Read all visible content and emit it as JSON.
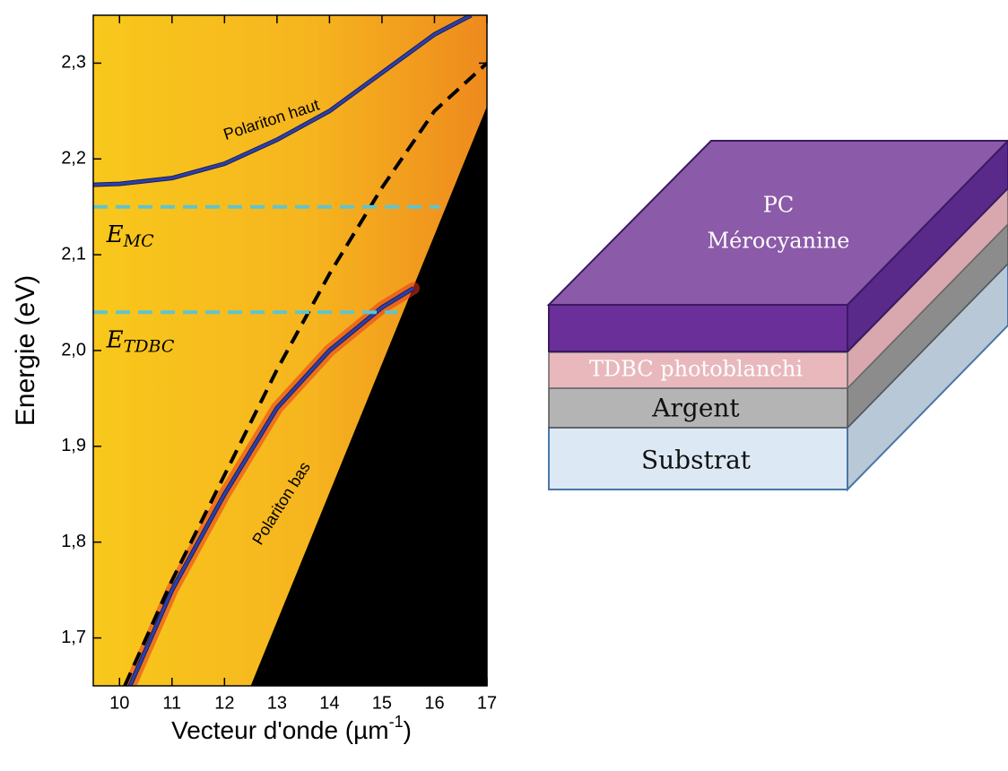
{
  "chart_data": {
    "type": "line",
    "ylabel": "Energie (eV)",
    "xlabel": {
      "text": "Vecteur d'onde (µm",
      "sup": "-1",
      "tail": ")"
    },
    "xlim": [
      9.5,
      17
    ],
    "ylim": [
      1.65,
      2.35
    ],
    "xticks": [
      10,
      11,
      12,
      13,
      14,
      15,
      16,
      17
    ],
    "yticks": [
      {
        "value": 1.7,
        "label": "1,7"
      },
      {
        "value": 1.8,
        "label": "1,8"
      },
      {
        "value": 1.9,
        "label": "1,9"
      },
      {
        "value": 2.0,
        "label": "2,0"
      },
      {
        "value": 2.1,
        "label": "2,1"
      },
      {
        "value": 2.2,
        "label": "2,2"
      },
      {
        "value": 2.3,
        "label": "2,3"
      }
    ],
    "region": {
      "x": [
        12.5,
        17,
        17
      ],
      "values": [
        1.65,
        2.255,
        1.65
      ],
      "color": "#000000"
    },
    "series": [
      {
        "x": [
          9.5,
          10,
          11,
          12,
          13,
          14,
          15,
          16,
          16.7
        ],
        "values": [
          2.173,
          2.174,
          2.18,
          2.195,
          2.22,
          2.25,
          2.29,
          2.33,
          2.35
        ],
        "color": "#2e3fa8",
        "dash": false
      },
      {
        "x": [
          10.2,
          11,
          12,
          13,
          14,
          15,
          15.6
        ],
        "values": [
          1.65,
          1.75,
          1.85,
          1.94,
          2.0,
          2.045,
          2.065
        ],
        "color": "#2e3fa8",
        "dash": false
      },
      {
        "x": [
          10.1,
          11,
          12,
          13,
          14,
          15,
          16,
          17
        ],
        "values": [
          1.65,
          1.76,
          1.87,
          1.98,
          2.08,
          2.17,
          2.25,
          2.3
        ],
        "color": "#000000",
        "dash": true
      },
      {
        "x": [
          9.5,
          16.1
        ],
        "values": [
          2.15,
          2.15
        ],
        "color": "#5fc4cf",
        "dash": true
      },
      {
        "x": [
          9.5,
          15.3
        ],
        "values": [
          2.04,
          2.04
        ],
        "color": "#5fc4cf",
        "dash": true
      }
    ],
    "annotations": [
      {
        "text": "Polariton haut",
        "x": 12.9,
        "y": 2.24
      },
      {
        "text": "Polariton bas",
        "x": 13.1,
        "y": 1.84
      },
      {
        "text": "E",
        "sub": "MC",
        "x": 9.75,
        "y": 2.12
      },
      {
        "text": "E",
        "sub": "TDBC",
        "x": 9.75,
        "y": 2.01
      }
    ]
  },
  "diagram": {
    "layers": [
      "PC",
      "Mérocyanine",
      "TDBC photoblanchi",
      "Argent",
      "Substrat"
    ]
  }
}
